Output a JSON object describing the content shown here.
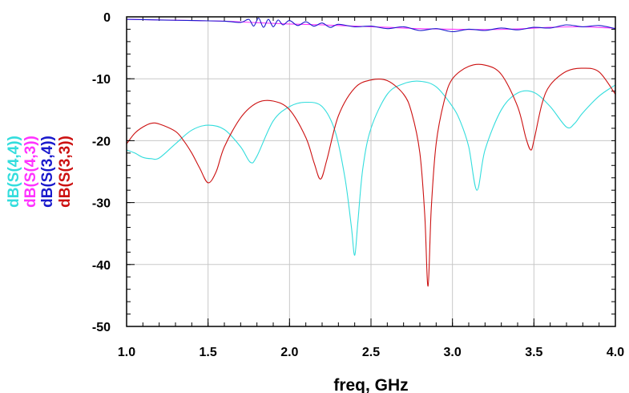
{
  "chart_data": {
    "type": "line",
    "xlabel": "freq, GHz",
    "ylabel": "",
    "xlim": [
      1.0,
      4.0
    ],
    "ylim": [
      -50,
      0
    ],
    "x_ticks": [
      "1.0",
      "1.5",
      "2.0",
      "2.5",
      "3.0",
      "3.5",
      "4.0"
    ],
    "y_ticks": [
      "0",
      "-10",
      "-20",
      "-30",
      "-40",
      "-50"
    ],
    "grid": true,
    "legend": "left-vertical",
    "series": [
      {
        "name": "dB(S(4,4))",
        "color": "#33dddd",
        "x": [
          1.0,
          1.05,
          1.1,
          1.15,
          1.2,
          1.3,
          1.4,
          1.5,
          1.6,
          1.7,
          1.76,
          1.8,
          1.9,
          2.0,
          2.1,
          2.2,
          2.28,
          2.34,
          2.38,
          2.4,
          2.42,
          2.45,
          2.5,
          2.6,
          2.7,
          2.8,
          2.9,
          3.0,
          3.05,
          3.1,
          3.15,
          3.2,
          3.3,
          3.4,
          3.5,
          3.6,
          3.7,
          3.75,
          3.8,
          3.9,
          4.0
        ],
        "y": [
          -21.5,
          -22.0,
          -22.7,
          -22.9,
          -22.8,
          -20.5,
          -18.3,
          -17.5,
          -18.2,
          -21.0,
          -23.5,
          -22.5,
          -16.8,
          -14.5,
          -13.8,
          -14.5,
          -18.5,
          -26.0,
          -34.0,
          -38.5,
          -33.0,
          -24.5,
          -18.0,
          -12.5,
          -10.8,
          -10.4,
          -11.3,
          -14.5,
          -17.0,
          -21.0,
          -28.0,
          -21.5,
          -15.0,
          -12.3,
          -12.2,
          -14.5,
          -17.8,
          -17.2,
          -15.5,
          -12.8,
          -11.0
        ]
      },
      {
        "name": "dB(S(4,3))",
        "color": "#ff33ff",
        "x": [
          1.0,
          1.3,
          1.6,
          1.8,
          2.0,
          2.2,
          2.4,
          2.6,
          2.8,
          3.0,
          3.2,
          3.4,
          3.6,
          3.8,
          4.0
        ],
        "y": [
          -0.4,
          -0.55,
          -0.7,
          -0.95,
          -1.15,
          -1.3,
          -1.5,
          -1.7,
          -1.9,
          -2.0,
          -2.05,
          -1.95,
          -1.7,
          -1.6,
          -1.85
        ]
      },
      {
        "name": "dB(S(3,4))",
        "color": "#1a1acc",
        "x": [
          1.0,
          1.2,
          1.4,
          1.6,
          1.7,
          1.75,
          1.78,
          1.81,
          1.84,
          1.87,
          1.9,
          1.93,
          1.96,
          2.0,
          2.05,
          2.1,
          2.15,
          2.2,
          2.25,
          2.3,
          2.4,
          2.5,
          2.6,
          2.7,
          2.8,
          2.9,
          3.0,
          3.1,
          3.2,
          3.3,
          3.4,
          3.5,
          3.6,
          3.7,
          3.8,
          3.9,
          4.0
        ],
        "y": [
          -0.4,
          -0.5,
          -0.6,
          -0.7,
          -0.9,
          -0.4,
          -1.5,
          -0.2,
          -1.7,
          -0.4,
          -1.6,
          -0.5,
          -1.3,
          -0.6,
          -1.4,
          -0.8,
          -1.5,
          -1.0,
          -1.7,
          -1.2,
          -1.6,
          -1.5,
          -1.9,
          -1.6,
          -2.2,
          -1.9,
          -2.4,
          -2.0,
          -2.2,
          -1.8,
          -2.1,
          -1.7,
          -1.8,
          -1.3,
          -1.6,
          -1.4,
          -1.9
        ]
      },
      {
        "name": "dB(S(3,3))",
        "color": "#cc1111",
        "x": [
          1.0,
          1.05,
          1.1,
          1.15,
          1.2,
          1.3,
          1.35,
          1.4,
          1.45,
          1.5,
          1.55,
          1.6,
          1.7,
          1.8,
          1.9,
          2.0,
          2.1,
          2.15,
          2.19,
          2.23,
          2.3,
          2.4,
          2.5,
          2.6,
          2.7,
          2.75,
          2.8,
          2.83,
          2.85,
          2.87,
          2.9,
          2.95,
          3.0,
          3.1,
          3.2,
          3.3,
          3.4,
          3.45,
          3.48,
          3.5,
          3.55,
          3.6,
          3.7,
          3.8,
          3.9,
          4.0
        ],
        "y": [
          -20.5,
          -18.8,
          -17.8,
          -17.2,
          -17.3,
          -18.5,
          -20.0,
          -22.0,
          -24.5,
          -26.8,
          -25.0,
          -21.0,
          -16.3,
          -13.9,
          -13.6,
          -15.0,
          -19.5,
          -23.5,
          -26.2,
          -23.0,
          -16.0,
          -11.5,
          -10.2,
          -10.3,
          -12.5,
          -15.5,
          -22.0,
          -32.0,
          -43.5,
          -31.0,
          -20.5,
          -13.5,
          -10.0,
          -8.0,
          -7.8,
          -9.3,
          -14.5,
          -19.5,
          -21.5,
          -20.0,
          -14.0,
          -11.0,
          -8.8,
          -8.3,
          -8.9,
          -12.5
        ]
      }
    ]
  }
}
